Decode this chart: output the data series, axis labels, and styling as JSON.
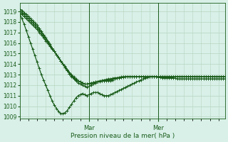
{
  "title": "",
  "xlabel": "Pression niveau de la mer( hPa )",
  "ylabel": "",
  "bg_color": "#d8f0e8",
  "grid_color": "#b8d4c0",
  "line_color": "#1a5c1a",
  "ylim": [
    1009,
    1019.5
  ],
  "yticks": [
    1009,
    1010,
    1011,
    1012,
    1013,
    1014,
    1015,
    1016,
    1017,
    1018,
    1019
  ],
  "xlim": [
    0,
    95
  ],
  "day_labels": [
    "Mar",
    "Mer"
  ],
  "day_positions": [
    32,
    64
  ],
  "vline_positions": [
    32,
    64
  ],
  "series": [
    [
      1018.8,
      1018.3,
      1017.8,
      1017.2,
      1016.6,
      1016.0,
      1015.4,
      1014.8,
      1014.2,
      1013.6,
      1013.0,
      1012.5,
      1012.0,
      1011.5,
      1011.0,
      1010.5,
      1010.1,
      1009.8,
      1009.5,
      1009.3,
      1009.3,
      1009.4,
      1009.6,
      1009.9,
      1010.2,
      1010.5,
      1010.8,
      1011.0,
      1011.1,
      1011.2,
      1011.1,
      1011.0,
      1011.1,
      1011.2,
      1011.3,
      1011.3,
      1011.3,
      1011.2,
      1011.1,
      1011.0,
      1011.0,
      1011.0,
      1011.1,
      1011.2,
      1011.3,
      1011.4,
      1011.5,
      1011.6,
      1011.7,
      1011.8,
      1011.9,
      1012.0,
      1012.1,
      1012.2,
      1012.3,
      1012.4,
      1012.5,
      1012.6,
      1012.7,
      1012.75,
      1012.8,
      1012.8,
      1012.8,
      1012.8,
      1012.75,
      1012.75,
      1012.7,
      1012.7,
      1012.7,
      1012.7,
      1012.7,
      1012.7,
      1012.65,
      1012.6,
      1012.6,
      1012.6,
      1012.6,
      1012.6,
      1012.6,
      1012.6,
      1012.6,
      1012.6,
      1012.6,
      1012.6,
      1012.6,
      1012.6,
      1012.6,
      1012.6,
      1012.6,
      1012.6,
      1012.6,
      1012.6,
      1012.6,
      1012.6,
      1012.6,
      1012.6
    ],
    [
      1019.2,
      1019.1,
      1018.9,
      1018.7,
      1018.5,
      1018.3,
      1018.1,
      1017.9,
      1017.7,
      1017.4,
      1017.1,
      1016.8,
      1016.5,
      1016.2,
      1015.9,
      1015.5,
      1015.2,
      1014.9,
      1014.6,
      1014.3,
      1014.0,
      1013.7,
      1013.4,
      1013.1,
      1012.8,
      1012.6,
      1012.4,
      1012.2,
      1012.1,
      1012.0,
      1011.9,
      1011.8,
      1011.9,
      1012.0,
      1012.1,
      1012.2,
      1012.3,
      1012.4,
      1012.4,
      1012.4,
      1012.4,
      1012.4,
      1012.4,
      1012.5,
      1012.6,
      1012.65,
      1012.7,
      1012.75,
      1012.75,
      1012.8,
      1012.8,
      1012.8,
      1012.8,
      1012.8,
      1012.8,
      1012.8,
      1012.8,
      1012.8,
      1012.8,
      1012.8,
      1012.8,
      1012.8,
      1012.8,
      1012.8,
      1012.8,
      1012.8,
      1012.8,
      1012.8,
      1012.8,
      1012.8,
      1012.8,
      1012.8,
      1012.8,
      1012.8,
      1012.8,
      1012.8,
      1012.8,
      1012.8,
      1012.8,
      1012.8,
      1012.8,
      1012.8,
      1012.8,
      1012.8,
      1012.8,
      1012.8,
      1012.8,
      1012.8,
      1012.8,
      1012.8,
      1012.8,
      1012.8,
      1012.8,
      1012.8,
      1012.8,
      1012.8
    ],
    [
      1019.0,
      1018.9,
      1018.7,
      1018.5,
      1018.3,
      1018.1,
      1017.9,
      1017.7,
      1017.5,
      1017.2,
      1017.0,
      1016.7,
      1016.4,
      1016.1,
      1015.8,
      1015.5,
      1015.2,
      1014.9,
      1014.6,
      1014.3,
      1014.0,
      1013.7,
      1013.4,
      1013.1,
      1012.9,
      1012.7,
      1012.5,
      1012.4,
      1012.3,
      1012.2,
      1012.1,
      1012.1,
      1012.15,
      1012.2,
      1012.25,
      1012.3,
      1012.35,
      1012.4,
      1012.45,
      1012.5,
      1012.55,
      1012.6,
      1012.6,
      1012.65,
      1012.7,
      1012.7,
      1012.75,
      1012.8,
      1012.8,
      1012.8,
      1012.8,
      1012.8,
      1012.8,
      1012.8,
      1012.8,
      1012.8,
      1012.8,
      1012.8,
      1012.8,
      1012.8,
      1012.8,
      1012.8,
      1012.8,
      1012.8,
      1012.8,
      1012.8,
      1012.8,
      1012.8,
      1012.8,
      1012.8,
      1012.8,
      1012.8,
      1012.8,
      1012.8,
      1012.8,
      1012.8,
      1012.8,
      1012.8,
      1012.8,
      1012.8,
      1012.8,
      1012.8,
      1012.8,
      1012.8,
      1012.8,
      1012.8,
      1012.8,
      1012.8,
      1012.8,
      1012.8,
      1012.8,
      1012.8,
      1012.8,
      1012.8,
      1012.8,
      1012.8
    ],
    [
      1018.8,
      1018.7,
      1018.5,
      1018.3,
      1018.1,
      1017.9,
      1017.7,
      1017.5,
      1017.3,
      1017.0,
      1016.8,
      1016.5,
      1016.2,
      1016.0,
      1015.7,
      1015.4,
      1015.2,
      1014.9,
      1014.6,
      1014.3,
      1014.0,
      1013.8,
      1013.5,
      1013.2,
      1013.0,
      1012.8,
      1012.6,
      1012.4,
      1012.3,
      1012.2,
      1012.1,
      1012.1,
      1012.15,
      1012.2,
      1012.25,
      1012.3,
      1012.3,
      1012.35,
      1012.4,
      1012.4,
      1012.45,
      1012.5,
      1012.55,
      1012.6,
      1012.65,
      1012.7,
      1012.7,
      1012.75,
      1012.8,
      1012.8,
      1012.8,
      1012.8,
      1012.8,
      1012.8,
      1012.8,
      1012.8,
      1012.8,
      1012.8,
      1012.8,
      1012.8,
      1012.8,
      1012.8,
      1012.8,
      1012.8,
      1012.8,
      1012.8,
      1012.8,
      1012.8,
      1012.8,
      1012.8,
      1012.8,
      1012.8,
      1012.8,
      1012.8,
      1012.8,
      1012.8,
      1012.8,
      1012.8,
      1012.8,
      1012.8,
      1012.8,
      1012.8,
      1012.8,
      1012.8,
      1012.8,
      1012.8,
      1012.8,
      1012.8,
      1012.8,
      1012.8,
      1012.8,
      1012.8,
      1012.8,
      1012.8,
      1012.8,
      1012.8
    ]
  ],
  "marker_size": 2.8,
  "line_width": 0.9,
  "figsize": [
    3.2,
    2.0
  ],
  "dpi": 100
}
